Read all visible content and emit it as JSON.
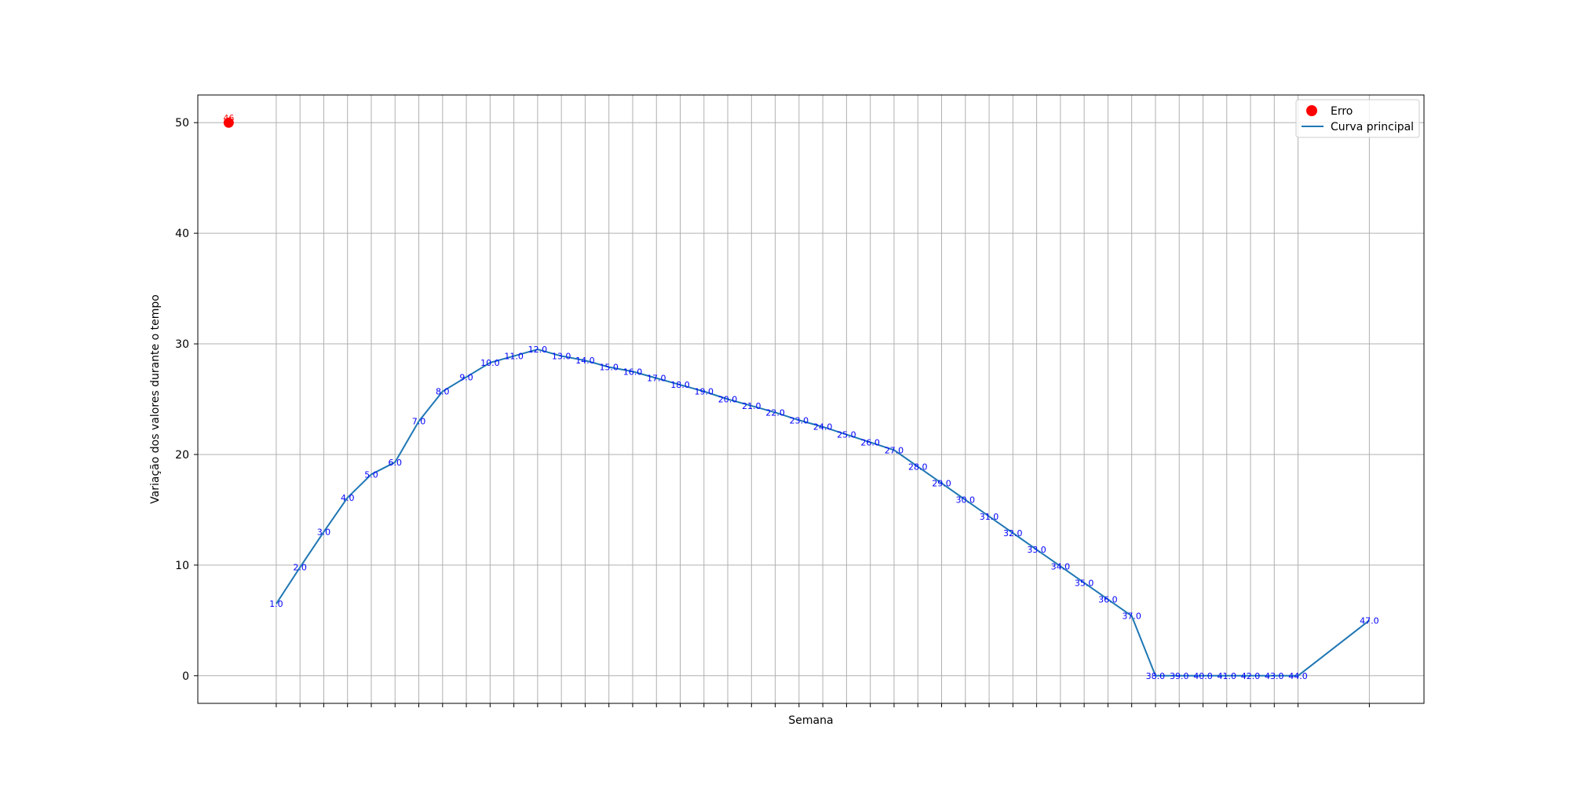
{
  "chart_data": {
    "type": "line",
    "title": "",
    "xlabel": "Semana",
    "ylabel": "Variação dos valores durante o tempo",
    "xlim": [
      -2.3,
      49.3
    ],
    "ylim": [
      -2.5,
      52.5
    ],
    "yticks": [
      0,
      10,
      20,
      30,
      40,
      50
    ],
    "grid": true,
    "legend": "top-right",
    "colors": {
      "line": "#1f77b4",
      "error": "#ff0000",
      "labels": "#0000ff",
      "grid": "#b0b0b0"
    },
    "series": [
      {
        "name": "Curva principal",
        "points": [
          {
            "x": 1,
            "y": 6.5,
            "label": "1.0"
          },
          {
            "x": 2,
            "y": 9.8,
            "label": "2.0"
          },
          {
            "x": 3,
            "y": 13.0,
            "label": "3.0"
          },
          {
            "x": 4,
            "y": 16.1,
            "label": "4.0"
          },
          {
            "x": 5,
            "y": 18.2,
            "label": "5.0"
          },
          {
            "x": 6,
            "y": 19.3,
            "label": "6.0"
          },
          {
            "x": 7,
            "y": 23.0,
            "label": "7.0"
          },
          {
            "x": 8,
            "y": 25.7,
            "label": "8.0"
          },
          {
            "x": 9,
            "y": 27.0,
            "label": "9.0"
          },
          {
            "x": 10,
            "y": 28.3,
            "label": "10.0"
          },
          {
            "x": 11,
            "y": 28.9,
            "label": "11.0"
          },
          {
            "x": 12,
            "y": 29.5,
            "label": "12.0"
          },
          {
            "x": 13,
            "y": 28.9,
            "label": "13.0"
          },
          {
            "x": 14,
            "y": 28.5,
            "label": "14.0"
          },
          {
            "x": 15,
            "y": 27.9,
            "label": "15.0"
          },
          {
            "x": 16,
            "y": 27.5,
            "label": "16.0"
          },
          {
            "x": 17,
            "y": 26.9,
            "label": "17.0"
          },
          {
            "x": 18,
            "y": 26.3,
            "label": "18.0"
          },
          {
            "x": 19,
            "y": 25.7,
            "label": "19.0"
          },
          {
            "x": 20,
            "y": 25.0,
            "label": "20.0"
          },
          {
            "x": 21,
            "y": 24.4,
            "label": "21.0"
          },
          {
            "x": 22,
            "y": 23.8,
            "label": "22.0"
          },
          {
            "x": 23,
            "y": 23.1,
            "label": "23.0"
          },
          {
            "x": 24,
            "y": 22.5,
            "label": "24.0"
          },
          {
            "x": 25,
            "y": 21.8,
            "label": "25.0"
          },
          {
            "x": 26,
            "y": 21.1,
            "label": "26.0"
          },
          {
            "x": 27,
            "y": 20.4,
            "label": "27.0"
          },
          {
            "x": 28,
            "y": 18.9,
            "label": "28.0"
          },
          {
            "x": 29,
            "y": 17.4,
            "label": "29.0"
          },
          {
            "x": 30,
            "y": 15.9,
            "label": "30.0"
          },
          {
            "x": 31,
            "y": 14.4,
            "label": "31.0"
          },
          {
            "x": 32,
            "y": 12.9,
            "label": "32.0"
          },
          {
            "x": 33,
            "y": 11.4,
            "label": "33.0"
          },
          {
            "x": 34,
            "y": 9.9,
            "label": "34.0"
          },
          {
            "x": 35,
            "y": 8.4,
            "label": "35.0"
          },
          {
            "x": 36,
            "y": 6.9,
            "label": "36.0"
          },
          {
            "x": 37,
            "y": 5.4,
            "label": "37.0"
          },
          {
            "x": 38,
            "y": 0.0,
            "label": "38.0"
          },
          {
            "x": 39,
            "y": 0.0,
            "label": "39.0"
          },
          {
            "x": 40,
            "y": 0.0,
            "label": "40.0"
          },
          {
            "x": 41,
            "y": 0.0,
            "label": "41.0"
          },
          {
            "x": 42,
            "y": 0.0,
            "label": "42.0"
          },
          {
            "x": 43,
            "y": 0.0,
            "label": "43.0"
          },
          {
            "x": 44,
            "y": 0.0,
            "label": "44.0"
          },
          {
            "x": 47,
            "y": 5.0,
            "label": "47.0"
          }
        ]
      },
      {
        "name": "Erro",
        "type": "scatter",
        "points": [
          {
            "x": -1,
            "y": 50,
            "label": "46"
          }
        ]
      }
    ]
  }
}
